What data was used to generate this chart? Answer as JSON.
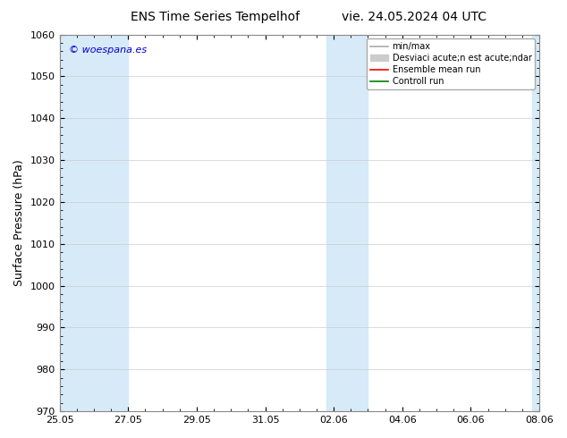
{
  "title_left": "ENS Time Series Tempelhof",
  "title_right": "vie. 24.05.2024 04 UTC",
  "ylabel": "Surface Pressure (hPa)",
  "ylim": [
    970,
    1060
  ],
  "yticks": [
    970,
    980,
    990,
    1000,
    1010,
    1020,
    1030,
    1040,
    1050,
    1060
  ],
  "xtick_labels": [
    "25.05",
    "27.05",
    "29.05",
    "31.05",
    "02.06",
    "04.06",
    "06.06",
    "08.06"
  ],
  "xtick_positions": [
    0,
    2,
    4,
    6,
    8,
    10,
    12,
    14
  ],
  "watermark": "© woespana.es",
  "watermark_color": "#0000cc",
  "background_color": "#ffffff",
  "plot_bg_color": "#ffffff",
  "band_color": "#d6eaf8",
  "shaded_ranges": [
    [
      0,
      2
    ],
    [
      7.8,
      9
    ],
    [
      13.8,
      14
    ]
  ],
  "legend_label_minmax": "min/max",
  "legend_label_std": "Desviaci acute;n est acute;ndar",
  "legend_label_mean": "Ensemble mean run",
  "legend_label_ctrl": "Controll run",
  "legend_color_minmax": "#aaaaaa",
  "legend_color_std": "#cccccc",
  "legend_color_mean": "#ff0000",
  "legend_color_ctrl": "#008000",
  "n_steps": 14,
  "figsize": [
    6.34,
    4.9
  ],
  "dpi": 100
}
